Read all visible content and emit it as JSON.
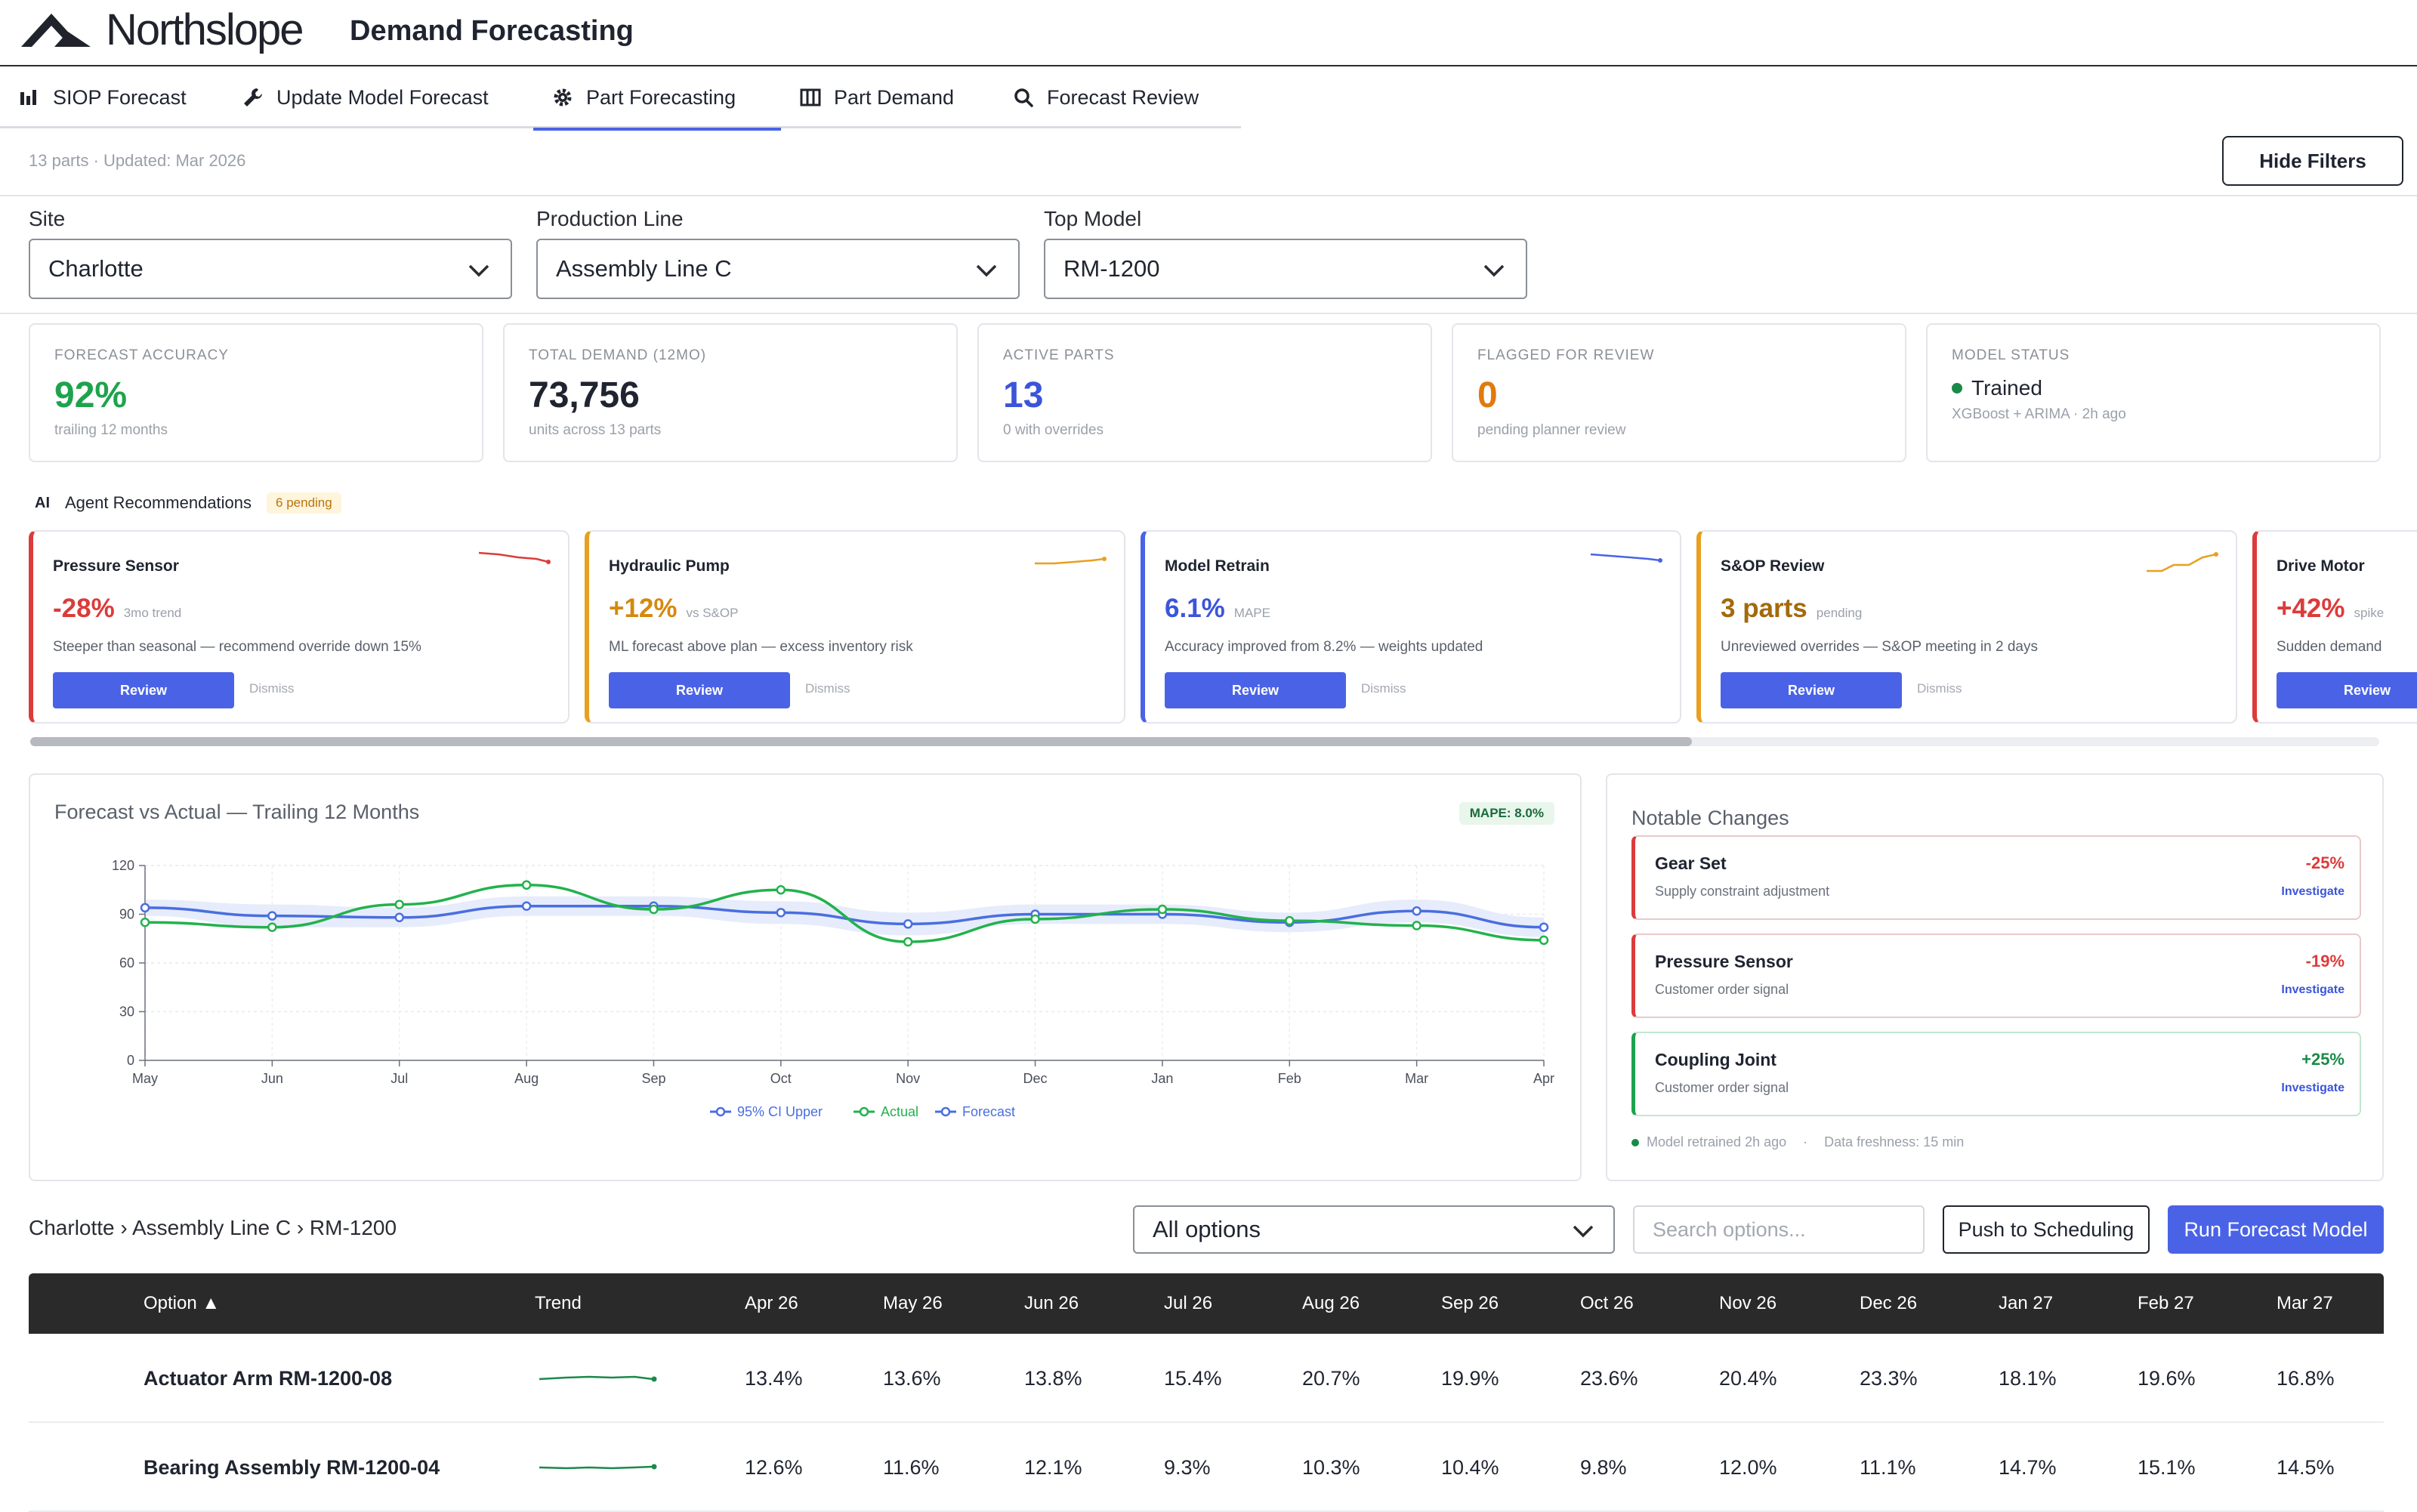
{
  "app": {
    "brand": "Northslope",
    "title": "Demand Forecasting"
  },
  "tabs": [
    {
      "label": "SIOP Forecast",
      "icon": "bar-chart-icon"
    },
    {
      "label": "Update Model Forecast",
      "icon": "wrench-icon"
    },
    {
      "label": "Part Forecasting",
      "icon": "gear-icon",
      "active": true
    },
    {
      "label": "Part Demand",
      "icon": "columns-icon"
    },
    {
      "label": "Forecast Review",
      "icon": "search-icon"
    }
  ],
  "meta": "13 parts · Updated: Mar 2026",
  "hide_filters": "Hide Filters",
  "filters": {
    "site": {
      "label": "Site",
      "value": "Charlotte"
    },
    "line": {
      "label": "Production Line",
      "value": "Assembly Line C"
    },
    "model": {
      "label": "Top Model",
      "value": "RM-1200"
    }
  },
  "kpis": [
    {
      "label": "FORECAST ACCURACY",
      "value": "92%",
      "sub": "trailing 12 months",
      "color": "#1ea34d"
    },
    {
      "label": "TOTAL DEMAND (12MO)",
      "value": "73,756",
      "sub": "units across 13 parts",
      "color": "#1f2430"
    },
    {
      "label": "ACTIVE PARTS",
      "value": "13",
      "sub": "0 with overrides",
      "color": "#3b55d9"
    },
    {
      "label": "FLAGGED FOR REVIEW",
      "value": "0",
      "sub": "pending planner review",
      "color": "#e07b0c"
    },
    {
      "label": "MODEL STATUS",
      "value": "Trained",
      "sub": "XGBoost + ARIMA · 2h ago",
      "color": "#1a8a4a"
    }
  ],
  "recommendations": {
    "ai": "AI",
    "title": "Agent Recommendations",
    "badge": "6 pending",
    "review_label": "Review",
    "dismiss_label": "Dismiss",
    "cards": [
      {
        "name": "Pressure Sensor",
        "value": "-28%",
        "unit": "3mo trend",
        "desc": "Steeper than seasonal — recommend override down 15%",
        "color": "#dc3b3b"
      },
      {
        "name": "Hydraulic Pump",
        "value": "+12%",
        "unit": "vs S&OP",
        "desc": "ML forecast above plan — excess inventory risk",
        "color": "#e8a020"
      },
      {
        "name": "Model Retrain",
        "value": "6.1%",
        "unit": "MAPE",
        "desc": "Accuracy improved from 8.2% — weights updated",
        "color": "#4a63e6"
      },
      {
        "name": "S&OP Review",
        "value": "3 parts",
        "unit": "pending",
        "desc": "Unreviewed overrides — S&OP meeting in 2 days",
        "color": "#e8a020"
      },
      {
        "name": "Drive Motor",
        "value": "+42%",
        "unit": "spike",
        "desc": "Sudden demand",
        "color": "#dc3b3b"
      }
    ]
  },
  "chart": {
    "title": "Forecast vs Actual — Trailing 12 Months",
    "badge": "MAPE: 8.0%",
    "legend": [
      "95% CI Upper",
      "Actual",
      "Forecast"
    ]
  },
  "chart_data": {
    "type": "line",
    "x": [
      "May",
      "Jun",
      "Jul",
      "Aug",
      "Sep",
      "Oct",
      "Nov",
      "Dec",
      "Jan",
      "Feb",
      "Mar",
      "Apr"
    ],
    "series": [
      {
        "name": "95% CI Upper",
        "values": [
          99,
          96,
          94,
          101,
          101,
          98,
          91,
          96,
          96,
          91,
          99,
          88
        ]
      },
      {
        "name": "Actual",
        "values": [
          85,
          82,
          96,
          108,
          93,
          105,
          73,
          87,
          93,
          86,
          83,
          74
        ]
      },
      {
        "name": "Forecast",
        "values": [
          94,
          89,
          88,
          95,
          95,
          91,
          84,
          90,
          90,
          85,
          92,
          82
        ]
      }
    ],
    "ylim": [
      0,
      120
    ],
    "yticks": [
      0,
      30,
      60,
      90,
      120
    ],
    "grid": true,
    "legend": "bottom-center",
    "colors": {
      "ci": "#e6ecfb",
      "actual": "#22b24c",
      "forecast": "#4a6ee0"
    }
  },
  "notable": {
    "title": "Notable Changes",
    "link_label": "Investigate",
    "items": [
      {
        "name": "Gear Set",
        "sub": "Supply constraint adjustment",
        "pct": "-25%",
        "dir": "neg"
      },
      {
        "name": "Pressure Sensor",
        "sub": "Customer order signal",
        "pct": "-19%",
        "dir": "neg"
      },
      {
        "name": "Coupling Joint",
        "sub": "Customer order signal",
        "pct": "+25%",
        "dir": "pos"
      }
    ],
    "footer_retrained": "Model retrained 2h ago",
    "footer_sep": "·",
    "footer_freshness": "Data freshness: 15 min"
  },
  "table_controls": {
    "breadcrumb": "Charlotte › Assembly Line C › RM-1200",
    "all_options": "All options",
    "search_placeholder": "Search options...",
    "push": "Push to Scheduling",
    "run": "Run Forecast Model"
  },
  "table": {
    "headers": [
      "Option ▲",
      "Trend",
      "Apr 26",
      "May 26",
      "Jun 26",
      "Jul 26",
      "Aug 26",
      "Sep 26",
      "Oct 26",
      "Nov 26",
      "Dec 26",
      "Jan 27",
      "Feb 27",
      "Mar 27"
    ],
    "rows": [
      {
        "name": "Actuator Arm RM-1200-08",
        "values": [
          "13.4%",
          "13.6%",
          "13.8%",
          "15.4%",
          "20.7%",
          "19.9%",
          "23.6%",
          "20.4%",
          "23.3%",
          "18.1%",
          "19.6%",
          "16.8%"
        ]
      },
      {
        "name": "Bearing Assembly RM-1200-04",
        "values": [
          "12.6%",
          "11.6%",
          "12.1%",
          "9.3%",
          "10.3%",
          "10.4%",
          "9.8%",
          "12.0%",
          "11.1%",
          "14.7%",
          "15.1%",
          "14.5%"
        ]
      }
    ]
  }
}
